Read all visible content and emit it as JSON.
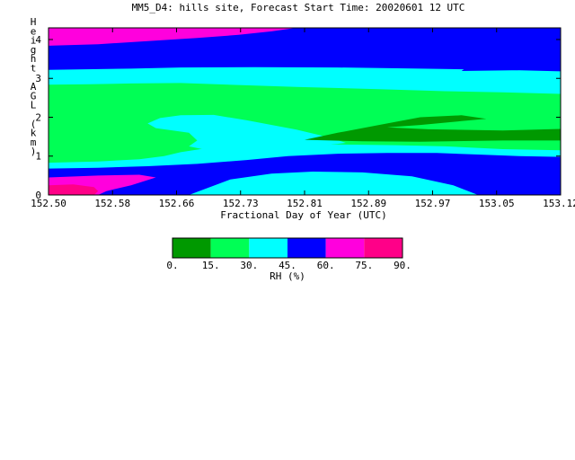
{
  "chart_data": {
    "type": "heatmap",
    "title": "MM5_D4: hills site,  Forecast Start Time: 20020601 12 UTC",
    "xlabel": "Fractional Day of Year (UTC)",
    "ylabel": "Height AGL (km)",
    "x_ticks": [
      "152.50",
      "152.58",
      "152.66",
      "152.73",
      "152.81",
      "152.89",
      "152.97",
      "153.05",
      "153.12"
    ],
    "y_ticks": [
      "0",
      "1",
      "2",
      "3",
      "4"
    ],
    "xlim": [
      152.5,
      153.12
    ],
    "ylim": [
      0,
      4.3
    ],
    "colorbar": {
      "label": "RH (%)",
      "levels": [
        "0.",
        "15.",
        "30.",
        "45.",
        "60.",
        "75.",
        "90."
      ],
      "colors": [
        "#009900",
        "#00ff55",
        "#00ffff",
        "#0000ff",
        "#ff00dd",
        "#ff0088"
      ]
    },
    "regions": [
      {
        "color": "#0000ff",
        "points": [
          [
            152.5,
            0.0
          ],
          [
            153.12,
            0.0
          ],
          [
            153.12,
            4.3
          ],
          [
            152.5,
            4.3
          ]
        ]
      },
      {
        "color": "#00ffff",
        "points": [
          [
            152.5,
            0.68
          ],
          [
            152.56,
            0.7
          ],
          [
            152.62,
            0.74
          ],
          [
            152.68,
            0.8
          ],
          [
            152.74,
            0.9
          ],
          [
            152.79,
            1.0
          ],
          [
            152.85,
            1.06
          ],
          [
            152.91,
            1.08
          ],
          [
            152.97,
            1.08
          ],
          [
            153.02,
            1.04
          ],
          [
            153.07,
            1.0
          ],
          [
            153.12,
            0.98
          ],
          [
            153.12,
            3.18
          ],
          [
            153.05,
            3.22
          ],
          [
            152.95,
            3.25
          ],
          [
            152.85,
            3.28
          ],
          [
            152.75,
            3.29
          ],
          [
            152.66,
            3.28
          ],
          [
            152.6,
            3.25
          ],
          [
            152.5,
            3.22
          ]
        ]
      },
      {
        "color": "#0000ff",
        "points": [
          [
            153.0,
            3.19
          ],
          [
            153.04,
            3.8
          ],
          [
            153.05,
            3.93
          ],
          [
            153.055,
            3.6
          ],
          [
            153.062,
            3.22
          ],
          [
            153.07,
            3.21
          ]
        ]
      },
      {
        "color": "#00ff55",
        "points": [
          [
            152.5,
            0.83
          ],
          [
            152.56,
            0.86
          ],
          [
            152.61,
            0.92
          ],
          [
            152.64,
            1.0
          ],
          [
            152.66,
            1.1
          ],
          [
            152.69,
            1.2
          ],
          [
            152.73,
            1.22
          ],
          [
            152.79,
            1.26
          ],
          [
            152.85,
            1.3
          ],
          [
            152.92,
            1.28
          ],
          [
            152.98,
            1.25
          ],
          [
            153.05,
            1.18
          ],
          [
            153.12,
            1.15
          ],
          [
            153.12,
            2.6
          ],
          [
            153.05,
            2.64
          ],
          [
            152.98,
            2.67
          ],
          [
            152.9,
            2.72
          ],
          [
            152.8,
            2.78
          ],
          [
            152.73,
            2.83
          ],
          [
            152.66,
            2.88
          ],
          [
            152.6,
            2.87
          ],
          [
            152.55,
            2.85
          ],
          [
            152.5,
            2.84
          ]
        ]
      },
      {
        "color": "#00ffff",
        "points": [
          [
            152.67,
            1.6
          ],
          [
            152.68,
            1.4
          ],
          [
            152.67,
            1.25
          ],
          [
            152.7,
            1.12
          ],
          [
            152.76,
            1.15
          ],
          [
            152.82,
            1.24
          ],
          [
            152.86,
            1.34
          ],
          [
            152.84,
            1.48
          ],
          [
            152.8,
            1.68
          ],
          [
            152.74,
            1.92
          ],
          [
            152.7,
            2.06
          ],
          [
            152.66,
            2.05
          ],
          [
            152.635,
            1.98
          ],
          [
            152.62,
            1.84
          ],
          [
            152.63,
            1.72
          ]
        ]
      },
      {
        "color": "#009900",
        "points": [
          [
            152.81,
            1.42
          ],
          [
            152.85,
            1.6
          ],
          [
            152.9,
            1.8
          ],
          [
            152.95,
            2.0
          ],
          [
            153.0,
            2.05
          ],
          [
            153.03,
            1.96
          ],
          [
            153.0,
            1.9
          ],
          [
            152.95,
            1.8
          ],
          [
            152.91,
            1.74
          ],
          [
            152.96,
            1.69
          ],
          [
            153.05,
            1.66
          ],
          [
            153.12,
            1.7
          ],
          [
            153.12,
            1.4
          ],
          [
            153.05,
            1.4
          ],
          [
            152.95,
            1.37
          ],
          [
            152.88,
            1.38
          ]
        ]
      },
      {
        "color": "#0000ff",
        "points": [
          [
            152.5,
            3.7
          ],
          [
            152.56,
            3.72
          ],
          [
            152.62,
            3.82
          ],
          [
            152.68,
            3.95
          ],
          [
            152.74,
            4.05
          ],
          [
            152.8,
            4.15
          ],
          [
            152.83,
            4.24
          ],
          [
            152.86,
            4.3
          ],
          [
            152.5,
            4.3
          ]
        ]
      },
      {
        "color": "#ff00dd",
        "points": [
          [
            152.5,
            3.84
          ],
          [
            152.56,
            3.88
          ],
          [
            152.62,
            3.96
          ],
          [
            152.68,
            4.04
          ],
          [
            152.73,
            4.12
          ],
          [
            152.77,
            4.21
          ],
          [
            152.8,
            4.3
          ],
          [
            152.5,
            4.3
          ]
        ]
      },
      {
        "color": "#ff00dd",
        "points": [
          [
            152.5,
            0.0
          ],
          [
            152.5,
            0.45
          ],
          [
            152.56,
            0.5
          ],
          [
            152.61,
            0.52
          ],
          [
            152.63,
            0.45
          ],
          [
            152.6,
            0.25
          ],
          [
            152.57,
            0.1
          ],
          [
            152.56,
            0.0
          ]
        ]
      },
      {
        "color": "#ff0088",
        "points": [
          [
            152.5,
            0.0
          ],
          [
            152.5,
            0.25
          ],
          [
            152.53,
            0.27
          ],
          [
            152.555,
            0.2
          ],
          [
            152.56,
            0.1
          ],
          [
            152.555,
            0.0
          ]
        ]
      },
      {
        "color": "#00ffff",
        "points": [
          [
            152.67,
            0.0
          ],
          [
            152.72,
            0.4
          ],
          [
            152.77,
            0.55
          ],
          [
            152.82,
            0.6
          ],
          [
            152.88,
            0.58
          ],
          [
            152.94,
            0.48
          ],
          [
            152.99,
            0.25
          ],
          [
            153.02,
            0.0
          ]
        ]
      }
    ]
  }
}
